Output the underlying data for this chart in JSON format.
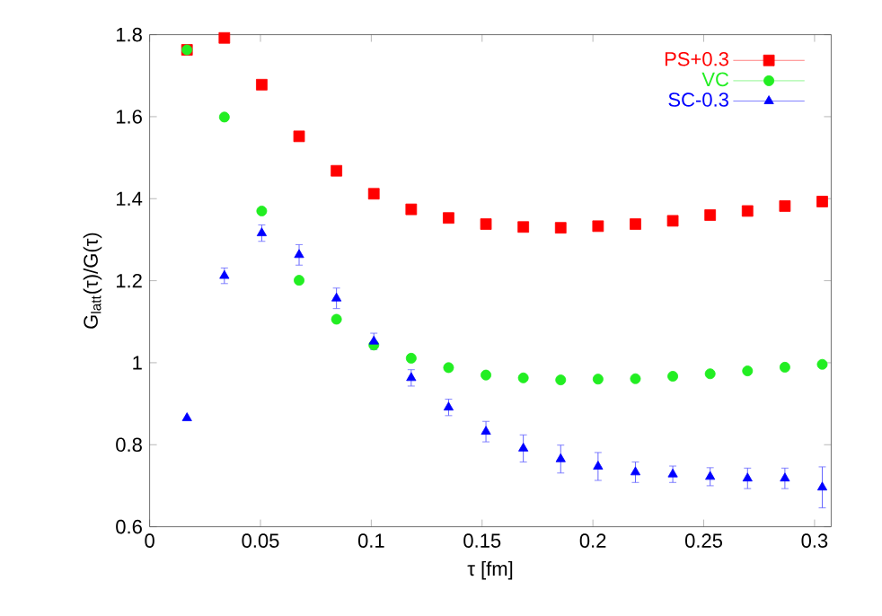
{
  "chart_data": {
    "type": "scatter",
    "xlabel": "τ [fm]",
    "ylabel": "G$_{latt}$(τ)/G(τ)",
    "x": [
      0.01686,
      0.03372,
      0.05058,
      0.06744,
      0.0843,
      0.10116,
      0.11802,
      0.13488,
      0.15174,
      0.1686,
      0.18546,
      0.20232,
      0.21918,
      0.23604,
      0.2529,
      0.26976,
      0.28662,
      0.30348
    ],
    "series": [
      {
        "name": "PS+0.3",
        "color": "#ff0000",
        "marker": "square",
        "values": [
          1.763,
          1.792,
          1.678,
          1.552,
          1.468,
          1.412,
          1.374,
          1.353,
          1.338,
          1.331,
          1.329,
          1.333,
          1.338,
          1.346,
          1.36,
          1.37,
          1.382,
          1.393
        ],
        "errors": [
          null,
          null,
          null,
          null,
          null,
          null,
          null,
          null,
          null,
          null,
          null,
          null,
          null,
          null,
          null,
          null,
          null,
          0.012
        ]
      },
      {
        "name": "VC",
        "color": "#22ee22",
        "marker": "circle",
        "values": [
          1.763,
          1.599,
          1.37,
          1.201,
          1.106,
          1.043,
          1.011,
          0.988,
          0.97,
          0.963,
          0.958,
          0.96,
          0.961,
          0.967,
          0.973,
          0.98,
          0.989,
          0.996
        ]
      },
      {
        "name": "SC-0.3",
        "color": "#0000ff",
        "marker": "triangle",
        "values": [
          0.865,
          1.212,
          1.316,
          1.263,
          1.157,
          1.052,
          0.963,
          0.891,
          0.832,
          0.791,
          0.765,
          0.747,
          0.733,
          0.728,
          0.722,
          0.718,
          0.718,
          0.696
        ],
        "errors": [
          null,
          0.019,
          0.02,
          0.025,
          0.025,
          0.02,
          0.02,
          0.02,
          0.025,
          0.033,
          0.034,
          0.034,
          0.025,
          0.02,
          0.022,
          0.025,
          0.025,
          0.05
        ]
      }
    ],
    "xlim": [
      0,
      0.3075
    ],
    "ylim": [
      0.6,
      1.8
    ],
    "xticks": [
      0,
      0.05,
      0.1,
      0.15,
      0.2,
      0.25,
      0.3
    ],
    "yticks": [
      0.6,
      0.8,
      1,
      1.2,
      1.4,
      1.6,
      1.8
    ],
    "grid": false,
    "legend": "top right"
  }
}
